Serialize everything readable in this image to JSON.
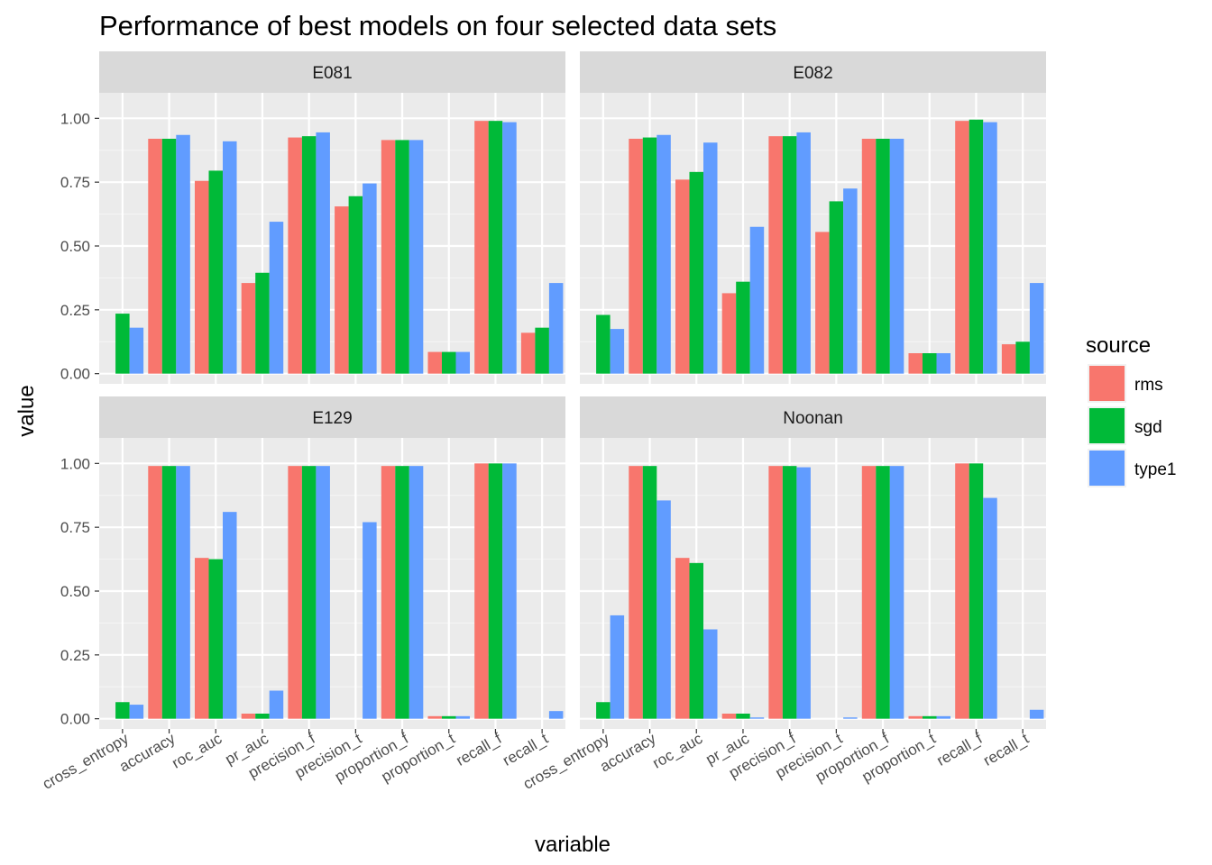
{
  "chart_data": {
    "type": "bar",
    "title": "Performance of best models on four selected data sets",
    "xlabel": "variable",
    "ylabel": "value",
    "ylim": [
      -0.04,
      1.1
    ],
    "y_ticks": [
      "0.00",
      "0.25",
      "0.50",
      "0.75",
      "1.00"
    ],
    "grid": true,
    "legend": {
      "title": "source",
      "position": "right"
    },
    "categories": [
      "cross_entropy",
      "accuracy",
      "roc_auc",
      "pr_auc",
      "precision_f",
      "precision_t",
      "proportion_f",
      "proportion_t",
      "recall_f",
      "recall_t"
    ],
    "series_names": [
      "rms",
      "sgd",
      "type1"
    ],
    "colors": {
      "rms": "#F8766D",
      "sgd": "#00BA38",
      "type1": "#619CFF"
    },
    "panels": [
      {
        "label": "E081",
        "series": [
          {
            "name": "rms",
            "values": [
              null,
              0.92,
              0.755,
              0.355,
              0.925,
              0.655,
              0.915,
              0.085,
              0.99,
              0.16
            ]
          },
          {
            "name": "sgd",
            "values": [
              0.235,
              0.92,
              0.795,
              0.395,
              0.93,
              0.695,
              0.915,
              0.085,
              0.99,
              0.18
            ]
          },
          {
            "name": "type1",
            "values": [
              0.18,
              0.935,
              0.91,
              0.595,
              0.945,
              0.745,
              0.915,
              0.085,
              0.985,
              0.355
            ]
          }
        ]
      },
      {
        "label": "E082",
        "series": [
          {
            "name": "rms",
            "values": [
              null,
              0.92,
              0.76,
              0.315,
              0.93,
              0.555,
              0.92,
              0.08,
              0.99,
              0.115
            ]
          },
          {
            "name": "sgd",
            "values": [
              0.23,
              0.925,
              0.79,
              0.36,
              0.93,
              0.675,
              0.92,
              0.08,
              0.995,
              0.125
            ]
          },
          {
            "name": "type1",
            "values": [
              0.175,
              0.935,
              0.905,
              0.575,
              0.945,
              0.725,
              0.92,
              0.08,
              0.985,
              0.355
            ]
          }
        ]
      },
      {
        "label": "E129",
        "series": [
          {
            "name": "rms",
            "values": [
              null,
              0.99,
              0.63,
              0.02,
              0.99,
              0.0,
              0.99,
              0.01,
              1.0,
              0.0
            ]
          },
          {
            "name": "sgd",
            "values": [
              0.065,
              0.99,
              0.625,
              0.02,
              0.99,
              0.0,
              0.99,
              0.01,
              1.0,
              0.0
            ]
          },
          {
            "name": "type1",
            "values": [
              0.055,
              0.99,
              0.81,
              0.11,
              0.99,
              0.77,
              0.99,
              0.01,
              1.0,
              0.03
            ]
          }
        ]
      },
      {
        "label": "Noonan",
        "series": [
          {
            "name": "rms",
            "values": [
              null,
              0.99,
              0.63,
              0.02,
              0.99,
              0.0,
              0.99,
              0.01,
              1.0,
              0.0
            ]
          },
          {
            "name": "sgd",
            "values": [
              0.065,
              0.99,
              0.61,
              0.02,
              0.99,
              0.0,
              0.99,
              0.01,
              1.0,
              0.0
            ]
          },
          {
            "name": "type1",
            "values": [
              0.405,
              0.855,
              0.35,
              0.005,
              0.985,
              0.005,
              0.99,
              0.01,
              0.865,
              0.035
            ]
          }
        ]
      }
    ]
  }
}
